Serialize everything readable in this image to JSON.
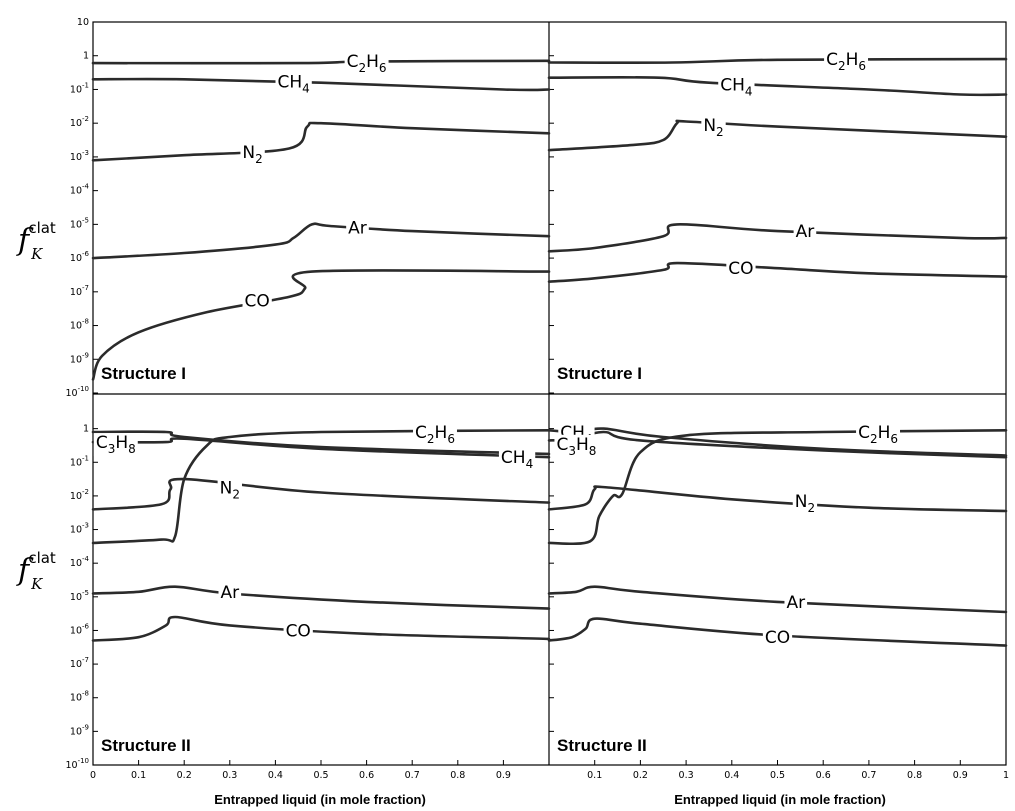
{
  "chart_data": {
    "type": "line",
    "x_label": "Entrapped liquid (in mole fraction)",
    "y_label": {
      "main": "f",
      "subscript": "K",
      "superscript": "clat"
    },
    "y_scale": "log",
    "y_ticks": [
      "10",
      "1",
      "10-1",
      "10-2",
      "10-3",
      "10-4",
      "10-5",
      "10-6",
      "10-7",
      "10-8",
      "10-9",
      "10-10"
    ],
    "x_ticks_left": [
      "0",
      "0.1",
      "0.2",
      "0.3",
      "0.4",
      "0.5",
      "0.6",
      "0.7",
      "0.8",
      "0.9"
    ],
    "x_ticks_right": [
      "0.1",
      "0.2",
      "0.3",
      "0.4",
      "0.5",
      "0.6",
      "0.7",
      "0.8",
      "0.9",
      "1"
    ],
    "ylim_exponent": [
      -10,
      1
    ],
    "xlim": [
      0,
      1
    ],
    "panels": [
      {
        "label": "Structure I",
        "series": [
          {
            "name": "C2H6",
            "points": [
              [
                0,
                -0.22
              ],
              [
                0.46,
                -0.22
              ],
              [
                0.6,
                -0.17
              ],
              [
                1.0,
                -0.15
              ]
            ]
          },
          {
            "name": "CH4",
            "points": [
              [
                0,
                -0.7
              ],
              [
                0.2,
                -0.7
              ],
              [
                0.5,
                -0.8
              ],
              [
                0.9,
                -1.0
              ],
              [
                1.0,
                -1.0
              ]
            ]
          },
          {
            "name": "N2",
            "points": [
              [
                0,
                -3.1
              ],
              [
                0.2,
                -2.95
              ],
              [
                0.43,
                -2.75
              ],
              [
                0.47,
                -2.1
              ],
              [
                0.5,
                -2.0
              ],
              [
                0.7,
                -2.15
              ],
              [
                1.0,
                -2.3
              ]
            ]
          },
          {
            "name": "Ar",
            "points": [
              [
                0,
                -6.0
              ],
              [
                0.2,
                -5.85
              ],
              [
                0.4,
                -5.6
              ],
              [
                0.44,
                -5.4
              ],
              [
                0.48,
                -5.0
              ],
              [
                0.52,
                -5.05
              ],
              [
                0.7,
                -5.2
              ],
              [
                1.0,
                -5.35
              ]
            ]
          },
          {
            "name": "CO",
            "points": [
              [
                0,
                -9.6
              ],
              [
                0.02,
                -8.9
              ],
              [
                0.1,
                -8.2
              ],
              [
                0.25,
                -7.6
              ],
              [
                0.43,
                -7.15
              ],
              [
                0.465,
                -6.9
              ],
              [
                0.48,
                -6.4
              ],
              [
                1.0,
                -6.4
              ]
            ]
          }
        ]
      },
      {
        "label": "Structure I",
        "series": [
          {
            "name": "C2H6",
            "points": [
              [
                0,
                -0.2
              ],
              [
                0.27,
                -0.2
              ],
              [
                0.5,
                -0.12
              ],
              [
                1.0,
                -0.1
              ]
            ]
          },
          {
            "name": "CH4",
            "points": [
              [
                0,
                -0.65
              ],
              [
                0.24,
                -0.65
              ],
              [
                0.35,
                -0.8
              ],
              [
                0.7,
                -1.0
              ],
              [
                0.9,
                -1.15
              ],
              [
                1.0,
                -1.15
              ]
            ]
          },
          {
            "name": "N2",
            "points": [
              [
                0,
                -2.8
              ],
              [
                0.18,
                -2.65
              ],
              [
                0.25,
                -2.5
              ],
              [
                0.28,
                -2.0
              ],
              [
                0.3,
                -1.95
              ],
              [
                0.5,
                -2.1
              ],
              [
                1.0,
                -2.4
              ]
            ]
          },
          {
            "name": "Ar",
            "points": [
              [
                0,
                -5.8
              ],
              [
                0.1,
                -5.7
              ],
              [
                0.25,
                -5.35
              ],
              [
                0.28,
                -5.0
              ],
              [
                0.5,
                -5.2
              ],
              [
                0.9,
                -5.4
              ],
              [
                1.0,
                -5.4
              ]
            ]
          },
          {
            "name": "CO",
            "points": [
              [
                0,
                -6.7
              ],
              [
                0.1,
                -6.6
              ],
              [
                0.25,
                -6.35
              ],
              [
                0.28,
                -6.15
              ],
              [
                0.5,
                -6.3
              ],
              [
                0.7,
                -6.45
              ],
              [
                1.0,
                -6.55
              ]
            ]
          }
        ]
      },
      {
        "label": "Structure II",
        "series": [
          {
            "name": "C2H6",
            "points": [
              [
                0,
                -3.4
              ],
              [
                0.15,
                -3.3
              ],
              [
                0.18,
                -3.2
              ],
              [
                0.2,
                -1.5
              ],
              [
                0.25,
                -0.5
              ],
              [
                0.3,
                -0.25
              ],
              [
                0.5,
                -0.1
              ],
              [
                1.0,
                -0.05
              ]
            ]
          },
          {
            "name": "C3H8",
            "points": [
              [
                0,
                -0.4
              ],
              [
                0.16,
                -0.4
              ],
              [
                0.2,
                -0.3
              ],
              [
                0.5,
                -0.6
              ],
              [
                1.0,
                -0.85
              ]
            ]
          },
          {
            "name": "CH4",
            "points": [
              [
                0,
                -0.1
              ],
              [
                0.16,
                -0.1
              ],
              [
                0.2,
                -0.25
              ],
              [
                0.5,
                -0.55
              ],
              [
                1.0,
                -0.75
              ]
            ]
          },
          {
            "name": "N2",
            "points": [
              [
                0,
                -2.4
              ],
              [
                0.15,
                -2.25
              ],
              [
                0.17,
                -1.8
              ],
              [
                0.2,
                -1.5
              ],
              [
                0.5,
                -1.9
              ],
              [
                1.0,
                -2.2
              ]
            ]
          },
          {
            "name": "Ar",
            "points": [
              [
                0,
                -4.9
              ],
              [
                0.1,
                -4.85
              ],
              [
                0.18,
                -4.7
              ],
              [
                0.3,
                -4.9
              ],
              [
                0.6,
                -5.15
              ],
              [
                1.0,
                -5.35
              ]
            ]
          },
          {
            "name": "CO",
            "points": [
              [
                0,
                -6.3
              ],
              [
                0.1,
                -6.2
              ],
              [
                0.16,
                -5.85
              ],
              [
                0.18,
                -5.6
              ],
              [
                0.3,
                -5.85
              ],
              [
                0.6,
                -6.1
              ],
              [
                1.0,
                -6.25
              ]
            ]
          }
        ]
      },
      {
        "label": "Structure II",
        "series": [
          {
            "name": "C2H6",
            "points": [
              [
                0,
                -3.4
              ],
              [
                0.09,
                -3.35
              ],
              [
                0.11,
                -2.6
              ],
              [
                0.14,
                -2.0
              ],
              [
                0.16,
                -1.95
              ],
              [
                0.2,
                -0.7
              ],
              [
                0.3,
                -0.2
              ],
              [
                0.6,
                -0.1
              ],
              [
                1.0,
                -0.05
              ]
            ]
          },
          {
            "name": "C3H8",
            "points": [
              [
                0,
                -0.35
              ],
              [
                0.05,
                -0.32
              ],
              [
                0.12,
                -0.1
              ],
              [
                0.2,
                -0.35
              ],
              [
                0.6,
                -0.65
              ],
              [
                1.0,
                -0.85
              ]
            ]
          },
          {
            "name": "CH4",
            "points": [
              [
                0,
                -0.05
              ],
              [
                0.06,
                -0.1
              ],
              [
                0.12,
                0.0
              ],
              [
                0.25,
                -0.25
              ],
              [
                0.6,
                -0.6
              ],
              [
                1.0,
                -0.8
              ]
            ]
          },
          {
            "name": "N2",
            "points": [
              [
                0,
                -2.4
              ],
              [
                0.08,
                -2.25
              ],
              [
                0.1,
                -1.8
              ],
              [
                0.13,
                -1.75
              ],
              [
                0.4,
                -2.1
              ],
              [
                0.7,
                -2.35
              ],
              [
                1.0,
                -2.45
              ]
            ]
          },
          {
            "name": "Ar",
            "points": [
              [
                0,
                -4.9
              ],
              [
                0.06,
                -4.85
              ],
              [
                0.1,
                -4.7
              ],
              [
                0.2,
                -4.85
              ],
              [
                0.5,
                -5.15
              ],
              [
                1.0,
                -5.45
              ]
            ]
          },
          {
            "name": "CO",
            "points": [
              [
                0,
                -6.3
              ],
              [
                0.05,
                -6.2
              ],
              [
                0.08,
                -5.95
              ],
              [
                0.1,
                -5.65
              ],
              [
                0.2,
                -5.8
              ],
              [
                0.5,
                -6.15
              ],
              [
                1.0,
                -6.45
              ]
            ]
          }
        ]
      }
    ],
    "curve_labels": [
      {
        "panel": 0,
        "name": "C2H6",
        "text": "C",
        "sub1": "2",
        "mid": "H",
        "sub2": "6",
        "x": 0.6,
        "y": -0.15
      },
      {
        "panel": 0,
        "name": "CH4",
        "text": "CH",
        "sub1": "4",
        "x": 0.44,
        "y": -0.76
      },
      {
        "panel": 0,
        "name": "N2",
        "text": "N",
        "sub1": "2",
        "x": 0.35,
        "y": -2.85
      },
      {
        "panel": 0,
        "name": "Ar",
        "text": "Ar",
        "x": 0.58,
        "y": -5.1
      },
      {
        "panel": 0,
        "name": "CO",
        "text": "CO",
        "x": 0.36,
        "y": -7.25
      },
      {
        "panel": 1,
        "name": "C2H6",
        "text": "C",
        "sub1": "2",
        "mid": "H",
        "sub2": "6",
        "x": 0.65,
        "y": -0.1
      },
      {
        "panel": 1,
        "name": "CH4",
        "text": "CH",
        "sub1": "4",
        "x": 0.41,
        "y": -0.85
      },
      {
        "panel": 1,
        "name": "N2",
        "text": "N",
        "sub1": "2",
        "x": 0.36,
        "y": -2.05
      },
      {
        "panel": 1,
        "name": "Ar",
        "text": "Ar",
        "x": 0.56,
        "y": -5.2
      },
      {
        "panel": 1,
        "name": "CO",
        "text": "CO",
        "x": 0.42,
        "y": -6.3
      },
      {
        "panel": 2,
        "name": "C2H6",
        "text": "C",
        "sub1": "2",
        "mid": "H",
        "sub2": "6",
        "x": 0.75,
        "y": -0.1
      },
      {
        "panel": 2,
        "name": "C3H8",
        "text": "C",
        "sub1": "3",
        "mid": "H",
        "sub2": "8",
        "x": 0.05,
        "y": -0.4
      },
      {
        "panel": 2,
        "name": "CH4",
        "text": "CH",
        "sub1": "4",
        "x": 0.93,
        "y": -0.85
      },
      {
        "panel": 2,
        "name": "N2",
        "text": "N",
        "sub1": "2",
        "x": 0.3,
        "y": -1.75
      },
      {
        "panel": 2,
        "name": "Ar",
        "text": "Ar",
        "x": 0.3,
        "y": -4.85
      },
      {
        "panel": 2,
        "name": "CO",
        "text": "CO",
        "x": 0.45,
        "y": -6.0
      },
      {
        "panel": 3,
        "name": "C2H6",
        "text": "C",
        "sub1": "2",
        "mid": "H",
        "sub2": "6",
        "x": 0.72,
        "y": -0.1
      },
      {
        "panel": 3,
        "name": "CH4",
        "text": "CH",
        "sub1": "4",
        "x": 0.06,
        "y": -0.1
      },
      {
        "panel": 3,
        "name": "C3H8",
        "text": "C",
        "sub1": "3",
        "mid": "H",
        "sub2": "8",
        "x": 0.06,
        "y": -0.45
      },
      {
        "panel": 3,
        "name": "N2",
        "text": "N",
        "sub1": "2",
        "x": 0.56,
        "y": -2.15
      },
      {
        "panel": 3,
        "name": "Ar",
        "text": "Ar",
        "x": 0.54,
        "y": -5.15
      },
      {
        "panel": 3,
        "name": "CO",
        "text": "CO",
        "x": 0.5,
        "y": -6.2
      }
    ]
  }
}
